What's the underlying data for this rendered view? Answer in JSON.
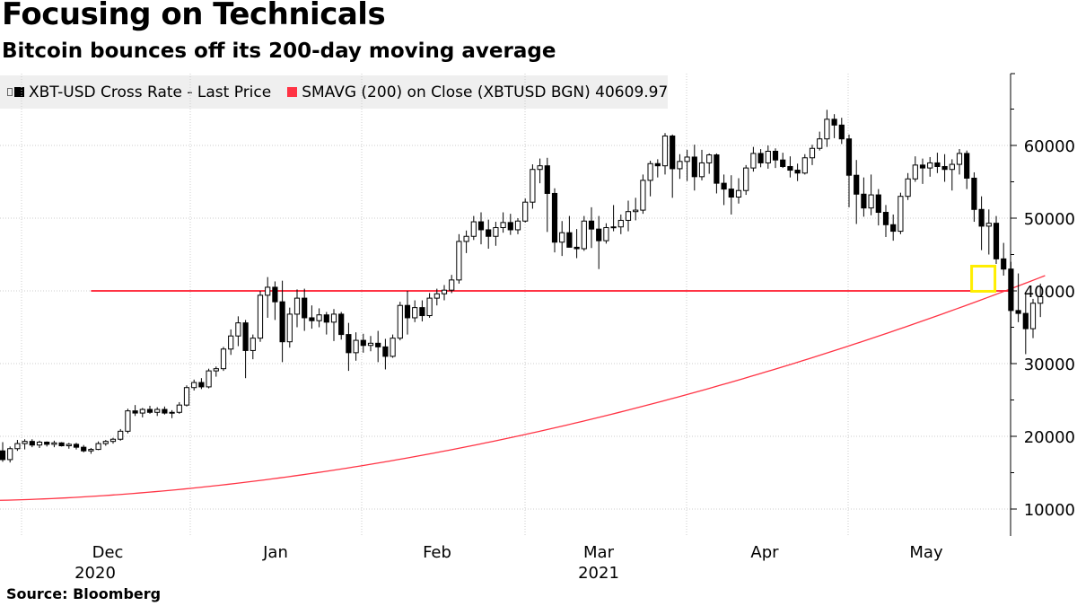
{
  "title": "Focusing on Technicals",
  "subtitle": "Bitcoin bounces off its 200-day moving average",
  "legend": {
    "series1_label": "XBT-USD Cross Rate - Last Price",
    "series2_label": "SMAVG (200)  on Close (XBTUSD BGN) 40609.97"
  },
  "source": "Source: Bloomberg",
  "colors": {
    "candle": "#000000",
    "sma": "#ff3344",
    "grid": "#cccccc",
    "highlight": "#ffee00"
  },
  "chart_data": {
    "type": "candlestick",
    "y_ticks": [
      10000,
      20000,
      30000,
      40000,
      50000,
      60000
    ],
    "ylim": [
      6000,
      70000
    ],
    "y_axis_side": "right",
    "x_ticks": [
      {
        "label": "Dec",
        "year": "2020",
        "week": 15
      },
      {
        "label": "Jan",
        "year": "",
        "week": 37
      },
      {
        "label": "Feb",
        "year": "",
        "week": 59
      },
      {
        "label": "Mar",
        "year": "2021",
        "week": 79
      },
      {
        "label": "Apr",
        "year": "",
        "week": 101
      },
      {
        "label": "May",
        "year": "",
        "week": 123
      }
    ],
    "grid": true,
    "horizontal_line": {
      "value": 40000,
      "color": "red",
      "from_week": 12
    },
    "highlight_week": 133,
    "candles": [
      [
        18000,
        19200,
        16500,
        16800
      ],
      [
        16800,
        18600,
        16400,
        18300
      ],
      [
        18300,
        19500,
        18000,
        19000
      ],
      [
        19000,
        19600,
        18200,
        19300
      ],
      [
        19300,
        19600,
        18500,
        18800
      ],
      [
        18800,
        19400,
        18400,
        19200
      ],
      [
        19200,
        19300,
        18600,
        18900
      ],
      [
        18900,
        19400,
        18500,
        19100
      ],
      [
        19100,
        19200,
        18600,
        18700
      ],
      [
        18700,
        19100,
        18300,
        18900
      ],
      [
        18900,
        19100,
        18200,
        18500
      ],
      [
        18500,
        18800,
        17800,
        18000
      ],
      [
        18000,
        18400,
        17600,
        18200
      ],
      [
        18200,
        19300,
        18100,
        19000
      ],
      [
        19000,
        19500,
        18700,
        19300
      ],
      [
        19300,
        19800,
        19000,
        19600
      ],
      [
        19600,
        21000,
        19400,
        20700
      ],
      [
        20700,
        23800,
        20400,
        23500
      ],
      [
        23500,
        24300,
        22800,
        23200
      ],
      [
        23200,
        23900,
        22600,
        23700
      ],
      [
        23700,
        24200,
        23100,
        23300
      ],
      [
        23300,
        24000,
        22800,
        23700
      ],
      [
        23700,
        24100,
        23000,
        23200
      ],
      [
        23200,
        23600,
        22500,
        23300
      ],
      [
        23300,
        24700,
        23100,
        24300
      ],
      [
        24300,
        27000,
        24100,
        26700
      ],
      [
        26700,
        27800,
        26300,
        27400
      ],
      [
        27400,
        28000,
        26500,
        26800
      ],
      [
        26800,
        29300,
        26600,
        29000
      ],
      [
        29000,
        29600,
        28200,
        29300
      ],
      [
        29300,
        32300,
        29000,
        32000
      ],
      [
        32000,
        34700,
        31200,
        33800
      ],
      [
        33800,
        36500,
        32400,
        35600
      ],
      [
        35600,
        36000,
        28000,
        31800
      ],
      [
        31800,
        34000,
        30600,
        33500
      ],
      [
        33500,
        40000,
        33000,
        39400
      ],
      [
        39400,
        41900,
        36300,
        40500
      ],
      [
        40500,
        41300,
        36000,
        38500
      ],
      [
        38500,
        41400,
        30200,
        33000
      ],
      [
        33000,
        37700,
        32200,
        36800
      ],
      [
        36800,
        40200,
        35000,
        39000
      ],
      [
        39000,
        40300,
        34500,
        36300
      ],
      [
        36300,
        38000,
        34800,
        35900
      ],
      [
        35900,
        37600,
        35000,
        36700
      ],
      [
        36700,
        37100,
        34000,
        35700
      ],
      [
        35700,
        37500,
        33100,
        36800
      ],
      [
        36800,
        37100,
        33300,
        34000
      ],
      [
        34000,
        35600,
        29000,
        31500
      ],
      [
        31500,
        34300,
        30400,
        33200
      ],
      [
        33200,
        34100,
        31500,
        32500
      ],
      [
        32500,
        33800,
        31700,
        32800
      ],
      [
        32800,
        34500,
        30200,
        32300
      ],
      [
        32300,
        33400,
        29200,
        31000
      ],
      [
        31000,
        34000,
        30800,
        33500
      ],
      [
        33500,
        38500,
        33200,
        38000
      ],
      [
        38000,
        40000,
        34000,
        36300
      ],
      [
        36300,
        38700,
        35700,
        37700
      ],
      [
        37700,
        38700,
        35800,
        36600
      ],
      [
        36600,
        39700,
        36300,
        39000
      ],
      [
        39000,
        40300,
        38000,
        39600
      ],
      [
        39600,
        40800,
        38700,
        40100
      ],
      [
        40100,
        42200,
        39700,
        41500
      ],
      [
        41500,
        47800,
        41000,
        46800
      ],
      [
        46800,
        48300,
        45200,
        47500
      ],
      [
        47500,
        50300,
        47000,
        49500
      ],
      [
        49500,
        50800,
        46400,
        48400
      ],
      [
        48400,
        49800,
        45800,
        47500
      ],
      [
        47500,
        49500,
        46200,
        48700
      ],
      [
        48700,
        50800,
        48000,
        49400
      ],
      [
        49400,
        50600,
        47700,
        48400
      ],
      [
        48400,
        50000,
        47800,
        49600
      ],
      [
        49600,
        52700,
        49400,
        52200
      ],
      [
        52200,
        57400,
        51300,
        56700
      ],
      [
        56700,
        58200,
        54800,
        57200
      ],
      [
        57200,
        58300,
        48100,
        53400
      ],
      [
        53400,
        54100,
        45300,
        46700
      ],
      [
        46700,
        49600,
        44800,
        48000
      ],
      [
        48000,
        50300,
        46300,
        46000
      ],
      [
        46000,
        48500,
        44500,
        45800
      ],
      [
        45800,
        50300,
        45500,
        49600
      ],
      [
        49600,
        51500,
        45900,
        48500
      ],
      [
        48500,
        50300,
        43000,
        46900
      ],
      [
        46900,
        49300,
        46500,
        48700
      ],
      [
        48700,
        51800,
        48200,
        48800
      ],
      [
        48800,
        50500,
        47800,
        49700
      ],
      [
        49700,
        52400,
        48200,
        50900
      ],
      [
        50900,
        52800,
        49700,
        51100
      ],
      [
        51100,
        56000,
        50600,
        55200
      ],
      [
        55200,
        57900,
        53000,
        57500
      ],
      [
        57500,
        58100,
        55600,
        57200
      ],
      [
        57200,
        61700,
        56000,
        61300
      ],
      [
        61300,
        61500,
        52800,
        56800
      ],
      [
        56800,
        58800,
        55400,
        57800
      ],
      [
        57800,
        59400,
        55100,
        58400
      ],
      [
        58400,
        60100,
        53800,
        55700
      ],
      [
        55700,
        59400,
        55200,
        57600
      ],
      [
        57600,
        58900,
        56100,
        58700
      ],
      [
        58700,
        58900,
        53400,
        54800
      ],
      [
        54800,
        56000,
        51800,
        54000
      ],
      [
        54000,
        55900,
        50500,
        52900
      ],
      [
        52900,
        55500,
        52000,
        53800
      ],
      [
        53800,
        57300,
        53200,
        56900
      ],
      [
        56900,
        59800,
        56400,
        58900
      ],
      [
        58900,
        59500,
        57000,
        57600
      ],
      [
        57600,
        60000,
        56800,
        59200
      ],
      [
        59200,
        59600,
        56900,
        58000
      ],
      [
        58000,
        59000,
        56900,
        57100
      ],
      [
        57100,
        58500,
        55600,
        56600
      ],
      [
        56600,
        57500,
        55100,
        56200
      ],
      [
        56200,
        58800,
        56000,
        58300
      ],
      [
        58300,
        60100,
        57300,
        59600
      ],
      [
        59600,
        61900,
        59300,
        60900
      ],
      [
        60900,
        64900,
        59800,
        63600
      ],
      [
        63600,
        64300,
        61000,
        62800
      ],
      [
        62800,
        63800,
        60200,
        60900
      ],
      [
        60900,
        61500,
        51500,
        55900
      ],
      [
        55900,
        58000,
        49200,
        53300
      ],
      [
        53300,
        55600,
        50200,
        51400
      ],
      [
        51400,
        56000,
        50400,
        53200
      ],
      [
        53200,
        54000,
        49000,
        50800
      ],
      [
        50800,
        51800,
        47400,
        49100
      ],
      [
        49100,
        50500,
        46900,
        48200
      ],
      [
        48200,
        53500,
        47800,
        53000
      ],
      [
        53000,
        56200,
        52500,
        55400
      ],
      [
        55400,
        58500,
        55000,
        57300
      ],
      [
        57300,
        58200,
        54700,
        56900
      ],
      [
        56900,
        58400,
        55700,
        57600
      ],
      [
        57600,
        59000,
        56200,
        57100
      ],
      [
        57100,
        58800,
        55000,
        56700
      ],
      [
        56700,
        58100,
        53800,
        57400
      ],
      [
        57400,
        59500,
        56000,
        58900
      ],
      [
        58900,
        59300,
        54000,
        55500
      ],
      [
        55500,
        56300,
        49500,
        51200
      ],
      [
        51200,
        53000,
        45600,
        48900
      ],
      [
        48900,
        51200,
        45000,
        49300
      ],
      [
        49300,
        50300,
        43700,
        44400
      ],
      [
        44400,
        46600,
        42100,
        43000
      ],
      [
        43000,
        44000,
        30000,
        37300
      ],
      [
        37300,
        42400,
        35700,
        36900
      ],
      [
        36900,
        39700,
        31300,
        34800
      ],
      [
        34800,
        38900,
        33500,
        38300
      ],
      [
        38300,
        41000,
        36400,
        39200
      ]
    ]
  }
}
